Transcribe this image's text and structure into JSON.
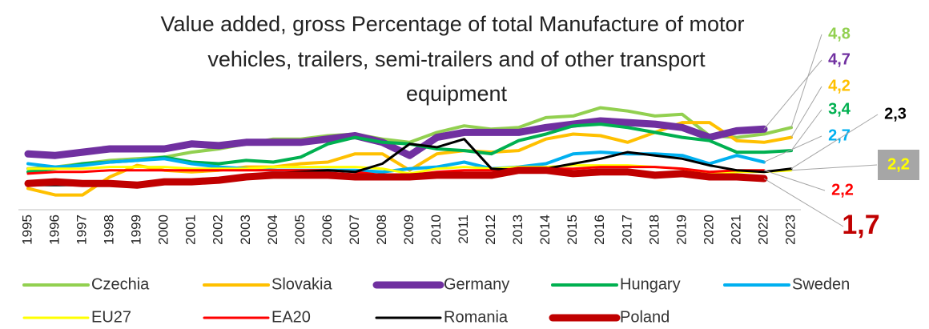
{
  "chart_data": {
    "type": "line",
    "title": [
      "Value added, gross Percentage of total Manufacture of motor",
      "vehicles, trailers, semi-trailers and of other transport",
      "equipment"
    ],
    "categories": [
      "1995",
      "1996",
      "1997",
      "1998",
      "1999",
      "2000",
      "2001",
      "2002",
      "2003",
      "2004",
      "2005",
      "2006",
      "2007",
      "2008",
      "2009",
      "2010",
      "2011",
      "2012",
      "2013",
      "2014",
      "2015",
      "2016",
      "2017",
      "2018",
      "2019",
      "2020",
      "2021",
      "2022",
      "2023"
    ],
    "ylim": [
      0,
      7
    ],
    "series": [
      {
        "name": "Czechia",
        "color": "#92d050",
        "values": [
          2.3,
          2.4,
          2.6,
          2.8,
          2.9,
          3.0,
          3.3,
          3.5,
          3.8,
          4.1,
          4.1,
          4.3,
          4.4,
          4.1,
          3.9,
          4.5,
          4.9,
          4.7,
          4.8,
          5.4,
          5.5,
          6.0,
          5.8,
          5.5,
          5.6,
          4.3,
          4.2,
          4.4,
          4.8
        ],
        "value_labels": [
          null,
          null,
          null,
          null,
          null,
          null,
          null,
          null,
          null,
          null,
          null,
          null,
          null,
          null,
          null,
          null,
          null,
          null,
          null,
          null,
          null,
          null,
          null,
          null,
          null,
          null,
          null,
          null,
          "4,8"
        ]
      },
      {
        "name": "Slovakia",
        "color": "#ffc000",
        "values": [
          1.1,
          0.7,
          0.7,
          1.8,
          2.5,
          2.2,
          2.1,
          2.2,
          2.4,
          2.4,
          2.6,
          2.7,
          3.2,
          3.2,
          2.2,
          3.2,
          3.4,
          3.3,
          3.4,
          4.1,
          4.4,
          4.3,
          3.9,
          4.5,
          5.1,
          5.1,
          4.0,
          3.9,
          4.2
        ],
        "value_labels": [
          null,
          null,
          null,
          null,
          null,
          null,
          null,
          null,
          null,
          null,
          null,
          null,
          null,
          null,
          null,
          null,
          null,
          null,
          null,
          null,
          null,
          null,
          null,
          null,
          null,
          null,
          null,
          null,
          "4,2"
        ]
      },
      {
        "name": "Germany",
        "color": "#7030a0",
        "values": [
          3.2,
          3.1,
          3.3,
          3.5,
          3.5,
          3.5,
          3.8,
          3.7,
          3.9,
          3.9,
          3.9,
          4.1,
          4.3,
          3.9,
          3.1,
          4.2,
          4.5,
          4.5,
          4.5,
          4.8,
          5.0,
          5.2,
          5.1,
          5.0,
          4.8,
          4.2,
          4.6,
          4.7,
          null
        ],
        "value_labels": [
          null,
          null,
          null,
          null,
          null,
          null,
          null,
          null,
          null,
          null,
          null,
          null,
          null,
          null,
          null,
          null,
          null,
          null,
          null,
          null,
          null,
          null,
          null,
          null,
          null,
          null,
          null,
          "4,7",
          null
        ]
      },
      {
        "name": "Hungary",
        "color": "#00b050",
        "values": [
          2.1,
          2.3,
          2.6,
          2.7,
          2.8,
          3.0,
          2.7,
          2.6,
          2.8,
          2.7,
          3.0,
          3.8,
          4.2,
          3.9,
          3.8,
          3.5,
          3.4,
          3.2,
          4.0,
          4.4,
          4.9,
          5.0,
          4.8,
          4.5,
          4.2,
          4.0,
          3.3,
          3.3,
          3.4
        ],
        "value_labels": [
          null,
          null,
          null,
          null,
          null,
          null,
          null,
          null,
          null,
          null,
          null,
          null,
          null,
          null,
          null,
          null,
          null,
          null,
          null,
          null,
          null,
          null,
          null,
          null,
          null,
          null,
          null,
          null,
          "3,4"
        ]
      },
      {
        "name": "Sweden",
        "color": "#00b0f0",
        "values": [
          2.6,
          2.4,
          2.5,
          2.7,
          2.8,
          2.9,
          2.6,
          2.4,
          2.3,
          2.2,
          2.2,
          2.2,
          2.2,
          2.1,
          2.3,
          2.4,
          2.7,
          2.3,
          2.4,
          2.6,
          3.2,
          3.3,
          3.2,
          3.2,
          3.1,
          2.6,
          3.1,
          2.7,
          null
        ],
        "value_labels": [
          null,
          null,
          null,
          null,
          null,
          null,
          null,
          null,
          null,
          null,
          null,
          null,
          null,
          null,
          null,
          null,
          null,
          null,
          null,
          null,
          null,
          null,
          null,
          null,
          null,
          null,
          null,
          "2,7",
          null
        ]
      },
      {
        "name": "EU27",
        "color": "#ffff00",
        "values": [
          2.3,
          2.3,
          2.3,
          2.4,
          2.4,
          2.4,
          2.3,
          2.3,
          2.3,
          2.4,
          2.4,
          2.4,
          2.4,
          2.3,
          2.0,
          2.3,
          2.4,
          2.3,
          2.4,
          2.4,
          2.5,
          2.5,
          2.5,
          2.4,
          2.3,
          2.0,
          2.1,
          2.1,
          2.2
        ],
        "value_labels": [
          null,
          null,
          null,
          null,
          null,
          null,
          null,
          null,
          null,
          null,
          null,
          null,
          null,
          null,
          null,
          null,
          null,
          null,
          null,
          null,
          null,
          null,
          null,
          null,
          null,
          null,
          null,
          null,
          "2,2"
        ]
      },
      {
        "name": "EA20",
        "color": "#ff0000",
        "values": [
          2.0,
          2.1,
          2.1,
          2.2,
          2.2,
          2.2,
          2.2,
          2.2,
          2.2,
          2.2,
          2.2,
          2.2,
          2.1,
          1.9,
          1.9,
          2.1,
          2.2,
          2.2,
          2.3,
          2.3,
          2.3,
          2.4,
          2.4,
          2.4,
          2.3,
          2.1,
          2.2,
          2.2,
          null
        ],
        "value_labels": [
          null,
          null,
          null,
          null,
          null,
          null,
          null,
          null,
          null,
          null,
          null,
          null,
          null,
          null,
          null,
          null,
          null,
          null,
          null,
          null,
          null,
          null,
          null,
          null,
          null,
          null,
          null,
          "2,2",
          null
        ]
      },
      {
        "name": "Romania",
        "color": "#000000",
        "values": [
          1.3,
          1.3,
          1.3,
          1.4,
          1.4,
          1.5,
          1.5,
          1.6,
          1.8,
          2.0,
          2.1,
          2.2,
          2.1,
          2.6,
          3.8,
          3.6,
          4.1,
          2.3,
          2.2,
          2.3,
          2.6,
          2.9,
          3.3,
          3.1,
          2.9,
          2.5,
          2.2,
          2.1,
          2.3
        ],
        "value_labels": [
          null,
          null,
          null,
          null,
          null,
          null,
          null,
          null,
          null,
          null,
          null,
          null,
          null,
          null,
          null,
          null,
          null,
          null,
          null,
          null,
          null,
          null,
          null,
          null,
          null,
          null,
          null,
          null,
          "2,3"
        ]
      },
      {
        "name": "Poland",
        "color": "#c00000",
        "values": [
          1.4,
          1.5,
          1.4,
          1.4,
          1.3,
          1.5,
          1.5,
          1.6,
          1.8,
          1.9,
          1.9,
          1.9,
          1.8,
          1.8,
          1.8,
          1.9,
          1.9,
          1.9,
          2.2,
          2.2,
          2.0,
          2.1,
          2.1,
          1.9,
          2.0,
          1.8,
          1.8,
          1.7,
          null
        ],
        "value_labels": [
          null,
          null,
          null,
          null,
          null,
          null,
          null,
          null,
          null,
          null,
          null,
          null,
          null,
          null,
          null,
          null,
          null,
          null,
          null,
          null,
          null,
          null,
          null,
          null,
          null,
          null,
          null,
          "1,7",
          null
        ]
      }
    ]
  }
}
